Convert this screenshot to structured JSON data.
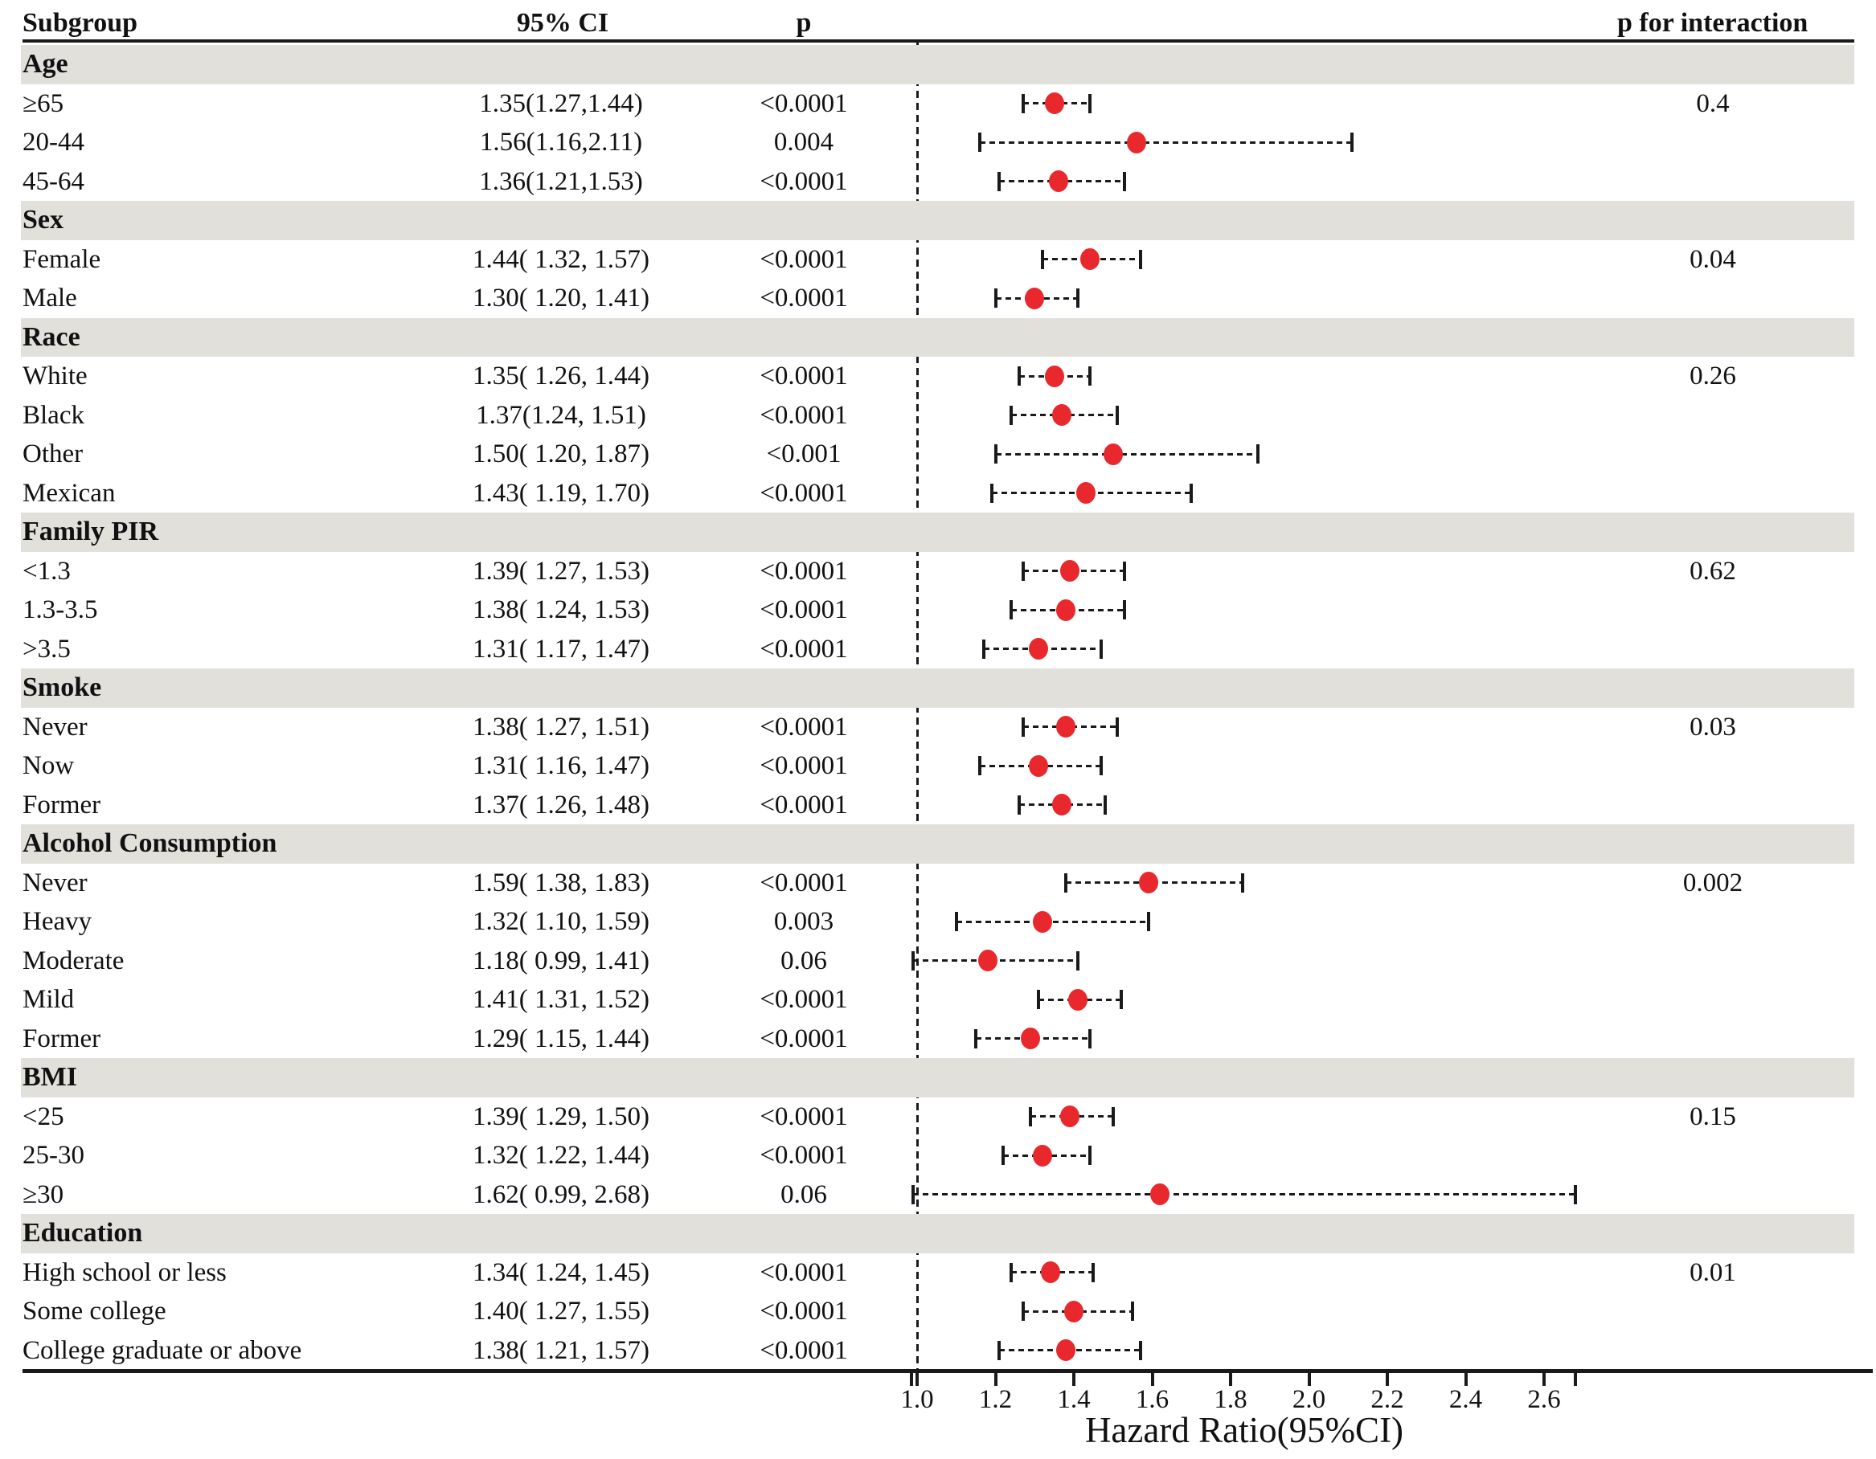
{
  "header": {
    "subgroup": "Subgroup",
    "ci": "95% CI",
    "p": "p",
    "p_interaction": "p for interaction"
  },
  "colors": {
    "marker_red": "#e8282d",
    "band_gray": "#e2e0db",
    "line_black": "#1a1a1a"
  },
  "chart_data": {
    "type": "forest",
    "title": "",
    "xlabel": "Hazard Ratio(95%CI)",
    "x_ticks": [
      "1.0",
      "1.2",
      "1.4",
      "1.6",
      "1.8",
      "2.0",
      "2.2",
      "2.4",
      "2.6"
    ],
    "x_tick_values": [
      1.0,
      1.2,
      1.4,
      1.6,
      1.8,
      2.0,
      2.2,
      2.4,
      2.6
    ],
    "minor_tick_values": [
      0.985,
      2.68
    ],
    "xlim": [
      0.95,
      2.75
    ],
    "reference_line": 1.0,
    "sections": [
      {
        "name": "Age",
        "p_interaction": "0.4",
        "rows": [
          {
            "label": "≥65",
            "ci": "1.35(1.27,1.44)",
            "p": "<0.0001",
            "hr": 1.35,
            "lo": 1.27,
            "hi": 1.44
          },
          {
            "label": "20-44",
            "ci": "1.56(1.16,2.11)",
            "p": "0.004",
            "hr": 1.56,
            "lo": 1.16,
            "hi": 2.11
          },
          {
            "label": "45-64",
            "ci": "1.36(1.21,1.53)",
            "p": "<0.0001",
            "hr": 1.36,
            "lo": 1.21,
            "hi": 1.53
          }
        ]
      },
      {
        "name": "Sex",
        "p_interaction": "0.04",
        "rows": [
          {
            "label": "Female",
            "ci": "1.44( 1.32, 1.57)",
            "p": "<0.0001",
            "hr": 1.44,
            "lo": 1.32,
            "hi": 1.57
          },
          {
            "label": "Male",
            "ci": "1.30( 1.20, 1.41)",
            "p": "<0.0001",
            "hr": 1.3,
            "lo": 1.2,
            "hi": 1.41
          }
        ]
      },
      {
        "name": "Race",
        "p_interaction": "0.26",
        "rows": [
          {
            "label": "White",
            "ci": "1.35( 1.26, 1.44)",
            "p": "<0.0001",
            "hr": 1.35,
            "lo": 1.26,
            "hi": 1.44
          },
          {
            "label": "Black",
            "ci": "1.37(1.24, 1.51)",
            "p": "<0.0001",
            "hr": 1.37,
            "lo": 1.24,
            "hi": 1.51
          },
          {
            "label": "Other",
            "ci": "1.50( 1.20, 1.87)",
            "p": "<0.001",
            "hr": 1.5,
            "lo": 1.2,
            "hi": 1.87
          },
          {
            "label": "Mexican",
            "ci": "1.43( 1.19, 1.70)",
            "p": "<0.0001",
            "hr": 1.43,
            "lo": 1.19,
            "hi": 1.7
          }
        ]
      },
      {
        "name": "Family PIR",
        "p_interaction": "0.62",
        "rows": [
          {
            "label": "<1.3",
            "ci": "1.39( 1.27, 1.53)",
            "p": "<0.0001",
            "hr": 1.39,
            "lo": 1.27,
            "hi": 1.53
          },
          {
            "label": "1.3-3.5",
            "ci": "1.38( 1.24, 1.53)",
            "p": "<0.0001",
            "hr": 1.38,
            "lo": 1.24,
            "hi": 1.53
          },
          {
            "label": ">3.5",
            "ci": "1.31( 1.17, 1.47)",
            "p": "<0.0001",
            "hr": 1.31,
            "lo": 1.17,
            "hi": 1.47
          }
        ]
      },
      {
        "name": "Smoke",
        "p_interaction": "0.03",
        "rows": [
          {
            "label": "Never",
            "ci": "1.38( 1.27, 1.51)",
            "p": "<0.0001",
            "hr": 1.38,
            "lo": 1.27,
            "hi": 1.51
          },
          {
            "label": "Now",
            "ci": "1.31( 1.16, 1.47)",
            "p": "<0.0001",
            "hr": 1.31,
            "lo": 1.16,
            "hi": 1.47
          },
          {
            "label": "Former",
            "ci": "1.37( 1.26, 1.48)",
            "p": "<0.0001",
            "hr": 1.37,
            "lo": 1.26,
            "hi": 1.48
          }
        ]
      },
      {
        "name": "Alcohol Consumption",
        "p_interaction": "0.002",
        "rows": [
          {
            "label": "Never",
            "ci": "1.59( 1.38, 1.83)",
            "p": "<0.0001",
            "hr": 1.59,
            "lo": 1.38,
            "hi": 1.83
          },
          {
            "label": "Heavy",
            "ci": "1.32( 1.10, 1.59)",
            "p": "0.003",
            "hr": 1.32,
            "lo": 1.1,
            "hi": 1.59
          },
          {
            "label": "Moderate",
            "ci": "1.18( 0.99, 1.41)",
            "p": "0.06",
            "hr": 1.18,
            "lo": 0.99,
            "hi": 1.41
          },
          {
            "label": "Mild",
            "ci": "1.41( 1.31, 1.52)",
            "p": "<0.0001",
            "hr": 1.41,
            "lo": 1.31,
            "hi": 1.52
          },
          {
            "label": "Former",
            "ci": "1.29( 1.15, 1.44)",
            "p": "<0.0001",
            "hr": 1.29,
            "lo": 1.15,
            "hi": 1.44
          }
        ]
      },
      {
        "name": "BMI",
        "p_interaction": "0.15",
        "rows": [
          {
            "label": "<25",
            "ci": "1.39( 1.29, 1.50)",
            "p": "<0.0001",
            "hr": 1.39,
            "lo": 1.29,
            "hi": 1.5
          },
          {
            "label": "25-30",
            "ci": "1.32( 1.22, 1.44)",
            "p": "<0.0001",
            "hr": 1.32,
            "lo": 1.22,
            "hi": 1.44
          },
          {
            "label": "≥30",
            "ci": "1.62( 0.99, 2.68)",
            "p": "0.06",
            "hr": 1.62,
            "lo": 0.99,
            "hi": 2.68
          }
        ]
      },
      {
        "name": "Education",
        "p_interaction": "0.01",
        "rows": [
          {
            "label": "High school or less",
            "ci": "1.34( 1.24, 1.45)",
            "p": "<0.0001",
            "hr": 1.34,
            "lo": 1.24,
            "hi": 1.45
          },
          {
            "label": "Some college",
            "ci": "1.40( 1.27, 1.55)",
            "p": "<0.0001",
            "hr": 1.4,
            "lo": 1.27,
            "hi": 1.55
          },
          {
            "label": "College graduate or above",
            "ci": "1.38( 1.21, 1.57)",
            "p": "<0.0001",
            "hr": 1.38,
            "lo": 1.21,
            "hi": 1.57
          }
        ]
      }
    ]
  }
}
